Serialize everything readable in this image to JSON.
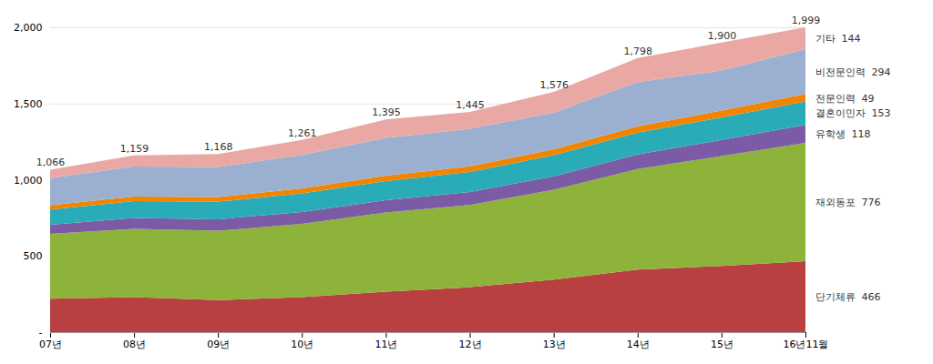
{
  "chart_data": {
    "type": "area",
    "stacked": true,
    "grid": true,
    "categories": [
      "07년",
      "08년",
      "09년",
      "10년",
      "11년",
      "12년",
      "13년",
      "14년",
      "15년",
      "16년11월"
    ],
    "series": [
      {
        "name": "단기체류  466",
        "color": "#B94040",
        "values": [
          220,
          230,
          210,
          230,
          265,
          295,
          345,
          410,
          435,
          466
        ]
      },
      {
        "name": "재외동포  776",
        "color": "#8DB33A",
        "values": [
          425,
          448,
          455,
          480,
          520,
          540,
          590,
          660,
          720,
          776
        ]
      },
      {
        "name": "유학생  118",
        "color": "#7B5BA6",
        "values": [
          60,
          72,
          76,
          78,
          80,
          84,
          88,
          96,
          106,
          118
        ]
      },
      {
        "name": "결혼이민자  153",
        "color": "#2AACB8",
        "values": [
          100,
          110,
          115,
          122,
          126,
          132,
          138,
          143,
          148,
          153
        ]
      },
      {
        "name": "전문인력  49",
        "color": "#F28500",
        "values": [
          28,
          30,
          31,
          33,
          36,
          37,
          39,
          42,
          45,
          49
        ]
      },
      {
        "name": "비전문인력  294",
        "color": "#9BAFD0",
        "values": [
          178,
          196,
          196,
          220,
          248,
          246,
          240,
          290,
          262,
          294
        ]
      },
      {
        "name": "기타  144",
        "color": "#EAA8A4",
        "values": [
          55,
          73,
          85,
          98,
          120,
          111,
          136,
          157,
          184,
          144
        ]
      }
    ],
    "ylim": [
      0,
      2000
    ],
    "yticks": [
      {
        "value": 0,
        "label": "-"
      },
      500,
      {
        "value": 1000,
        "label": "1,000"
      },
      {
        "value": 1500,
        "label": "1,500"
      },
      {
        "value": 2000,
        "label": "2,000"
      }
    ],
    "annotations": [
      {
        "x": "07년",
        "y": 1066,
        "text": "1,066"
      },
      {
        "x": "08년",
        "y": 1159,
        "text": "1,159"
      },
      {
        "x": "09년",
        "y": 1168,
        "text": "1,168"
      },
      {
        "x": "10년",
        "y": 1261,
        "text": "1,261"
      },
      {
        "x": "11년",
        "y": 1395,
        "text": "1,395"
      },
      {
        "x": "12년",
        "y": 1445,
        "text": "1,445"
      },
      {
        "x": "13년",
        "y": 1576,
        "text": "1,576"
      },
      {
        "x": "14년",
        "y": 1798,
        "text": "1,798"
      },
      {
        "x": "15년",
        "y": 1900,
        "text": "1,900"
      },
      {
        "x": "16년11월",
        "y": 1999,
        "text": "1,999"
      }
    ]
  }
}
